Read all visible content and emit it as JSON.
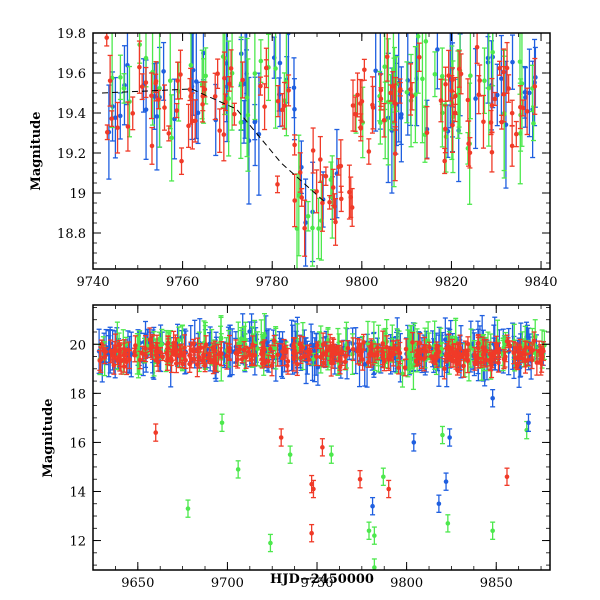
{
  "colors": {
    "blue": "#1f5fe0",
    "green": "#4de84d",
    "red": "#f03a28",
    "frame": "#000000",
    "dashed_line": "#000000"
  },
  "chart_data": [
    {
      "type": "scatter",
      "panel": "top",
      "title": "",
      "xlabel": "",
      "ylabel": "Magnitude",
      "xlim": [
        9740,
        9842
      ],
      "ylim": [
        19.8,
        18.62
      ],
      "y_inverted": true,
      "xticks": [
        "9740",
        "9760",
        "9780",
        "9800",
        "9820",
        "9840"
      ],
      "yticks": [
        "18.8",
        "19",
        "19.2",
        "19.4",
        "19.6",
        "19.8"
      ],
      "xtick_values": [
        9740,
        9760,
        9780,
        9800,
        9820,
        9840
      ],
      "ytick_values": [
        18.8,
        19.0,
        19.2,
        19.4,
        19.6,
        19.8
      ],
      "overlay_line": {
        "style": "dashed",
        "points": [
          [
            9742,
            19.5
          ],
          [
            9762,
            19.52
          ],
          [
            9772,
            19.42
          ],
          [
            9782,
            19.15
          ],
          [
            9792,
            18.95
          ]
        ]
      },
      "series": [
        {
          "color": "blue",
          "baseline": 19.5,
          "n": 80,
          "err": 0.18
        },
        {
          "color": "green",
          "baseline": 19.5,
          "n": 80,
          "err": 0.18
        },
        {
          "color": "red",
          "baseline": 19.45,
          "n": 130,
          "err": 0.08
        }
      ]
    },
    {
      "type": "scatter",
      "panel": "bottom",
      "title": "",
      "xlabel": "HJD−2450000",
      "ylabel": "Magnitude",
      "xlim": [
        9625,
        9880
      ],
      "ylim": [
        21.6,
        10.8
      ],
      "y_inverted": true,
      "xticks": [
        "9650",
        "9700",
        "9750",
        "9800",
        "9850"
      ],
      "yticks": [
        "12",
        "14",
        "16",
        "18",
        "20"
      ],
      "xtick_values": [
        9650,
        9700,
        9750,
        9800,
        9850
      ],
      "ytick_values": [
        12,
        14,
        16,
        18,
        20
      ],
      "outliers": {
        "green": [
          [
            9678,
            13.3
          ],
          [
            9697,
            16.8
          ],
          [
            9706,
            14.9
          ],
          [
            9724,
            11.9
          ],
          [
            9735,
            15.5
          ],
          [
            9758,
            15.5
          ],
          [
            9779,
            12.4
          ],
          [
            9782,
            12.2
          ],
          [
            9782,
            10.9
          ],
          [
            9787,
            14.6
          ],
          [
            9820,
            16.3
          ],
          [
            9823,
            12.7
          ],
          [
            9848,
            12.4
          ],
          [
            9867,
            16.5
          ]
        ],
        "red": [
          [
            9660,
            16.4
          ],
          [
            9730,
            16.2
          ],
          [
            9747,
            12.3
          ],
          [
            9747,
            14.3
          ],
          [
            9748,
            14.1
          ],
          [
            9753,
            15.8
          ],
          [
            9774,
            14.5
          ],
          [
            9790,
            14.1
          ],
          [
            9856,
            14.6
          ]
        ],
        "blue": [
          [
            9781,
            13.4
          ],
          [
            9804,
            16.0
          ],
          [
            9818,
            13.5
          ],
          [
            9822,
            14.4
          ],
          [
            9824,
            16.2
          ],
          [
            9848,
            17.8
          ],
          [
            9868,
            16.8
          ]
        ]
      },
      "series": [
        {
          "color": "blue",
          "baseline": 19.7,
          "n": 220,
          "err": 0.6
        },
        {
          "color": "green",
          "baseline": 19.8,
          "n": 160,
          "err": 0.55
        },
        {
          "color": "red",
          "baseline": 19.6,
          "n": 320,
          "err": 0.3
        }
      ]
    }
  ]
}
